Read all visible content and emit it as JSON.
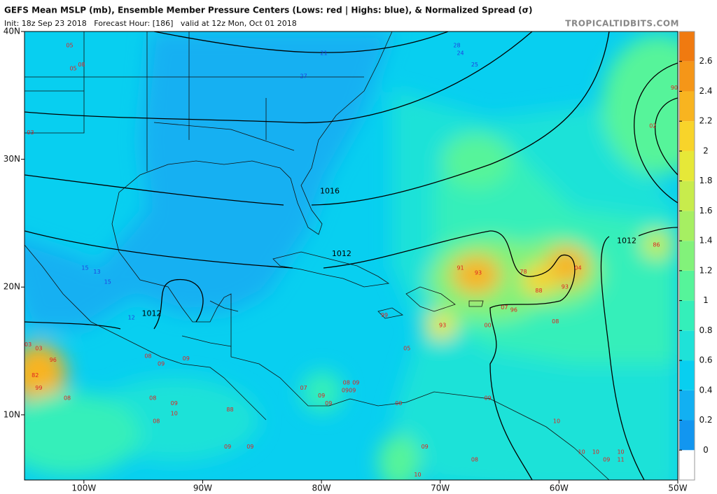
{
  "header": {
    "title": "GEFS Mean MSLP (mb), Ensemble Member Pressure Centers (Lows: red | Highs: blue), & Normalized Spread (σ)",
    "subtitle": "Init: 18z Sep 23 2018   Forecast Hour: [186]   valid at 12z Mon, Oct 01 2018",
    "site": "TROPICALTIDBITS.COM"
  },
  "map": {
    "xlim": [
      -105,
      -50
    ],
    "ylim": [
      4.9,
      40
    ],
    "xticks": [
      {
        "value": -100,
        "label": "100W"
      },
      {
        "value": -90,
        "label": "90W"
      },
      {
        "value": -80,
        "label": "80W"
      },
      {
        "value": -70,
        "label": "70W"
      },
      {
        "value": -60,
        "label": "60W"
      },
      {
        "value": -50,
        "label": "50W"
      }
    ],
    "yticks": [
      {
        "value": 10,
        "label": "10N"
      },
      {
        "value": 20,
        "label": "20N"
      },
      {
        "value": 30,
        "label": "30N"
      },
      {
        "value": 40,
        "label": "40N"
      }
    ],
    "isobar_labels": [
      {
        "label": "1016",
        "lon": -79.3,
        "lat": 27.5
      },
      {
        "label": "1012",
        "lon": -78.3,
        "lat": 22.6
      },
      {
        "label": "1012",
        "lon": -94.3,
        "lat": 17.9
      },
      {
        "label": "1012",
        "lon": -54.3,
        "lat": 23.6
      }
    ],
    "lows": [
      {
        "label": "05",
        "lon": -101.2,
        "lat": 38.9
      },
      {
        "label": "05",
        "lon": -100.9,
        "lat": 37.1
      },
      {
        "label": "08",
        "lon": -100.2,
        "lat": 37.4
      },
      {
        "label": "03",
        "lon": -104.5,
        "lat": 32.1
      },
      {
        "label": "91",
        "lon": -68.3,
        "lat": 21.5
      },
      {
        "label": "93",
        "lon": -66.8,
        "lat": 21.1
      },
      {
        "label": "78",
        "lon": -63.0,
        "lat": 21.2
      },
      {
        "label": "04",
        "lon": -58.4,
        "lat": 21.5
      },
      {
        "label": "88",
        "lon": -61.7,
        "lat": 19.7
      },
      {
        "label": "93",
        "lon": -59.5,
        "lat": 20.0
      },
      {
        "label": "86",
        "lon": -51.8,
        "lat": 23.3
      },
      {
        "label": "93",
        "lon": -69.8,
        "lat": 17.0
      },
      {
        "label": "00",
        "lon": -66.0,
        "lat": 17.0
      },
      {
        "label": "96",
        "lon": -63.8,
        "lat": 18.2
      },
      {
        "label": "07",
        "lon": -64.6,
        "lat": 18.4
      },
      {
        "label": "99",
        "lon": -74.7,
        "lat": 17.8
      },
      {
        "label": "05",
        "lon": -72.8,
        "lat": 15.2
      },
      {
        "label": "08",
        "lon": -60.3,
        "lat": 17.3
      },
      {
        "label": "96",
        "lon": -102.6,
        "lat": 14.3
      },
      {
        "label": "82",
        "lon": -104.1,
        "lat": 13.1
      },
      {
        "label": "99",
        "lon": -103.8,
        "lat": 12.1
      },
      {
        "label": "03",
        "lon": -104.7,
        "lat": 15.5
      },
      {
        "label": "03",
        "lon": -103.8,
        "lat": 15.2
      },
      {
        "label": "08",
        "lon": -101.4,
        "lat": 11.3
      },
      {
        "label": "08",
        "lon": -94.6,
        "lat": 14.6
      },
      {
        "label": "09",
        "lon": -93.5,
        "lat": 14.0
      },
      {
        "label": "09",
        "lon": -91.4,
        "lat": 14.4
      },
      {
        "label": "08",
        "lon": -94.2,
        "lat": 11.3
      },
      {
        "label": "09",
        "lon": -92.4,
        "lat": 10.9
      },
      {
        "label": "07",
        "lon": -81.5,
        "lat": 12.1
      },
      {
        "label": "09",
        "lon": -80.0,
        "lat": 11.5
      },
      {
        "label": "08",
        "lon": -77.9,
        "lat": 12.5
      },
      {
        "label": "09",
        "lon": -77.1,
        "lat": 12.5
      },
      {
        "label": "0909",
        "lon": -77.7,
        "lat": 11.9
      },
      {
        "label": "09",
        "lon": -79.4,
        "lat": 10.9
      },
      {
        "label": "88",
        "lon": -87.7,
        "lat": 10.4
      },
      {
        "label": "08",
        "lon": -93.9,
        "lat": 9.5
      },
      {
        "label": "10",
        "lon": -92.4,
        "lat": 10.1
      },
      {
        "label": "09",
        "lon": -87.9,
        "lat": 7.5
      },
      {
        "label": "09",
        "lon": -86.0,
        "lat": 7.5
      },
      {
        "label": "09",
        "lon": -66.0,
        "lat": 11.3
      },
      {
        "label": "10",
        "lon": -60.2,
        "lat": 9.5
      },
      {
        "label": "10",
        "lon": -58.1,
        "lat": 7.1
      },
      {
        "label": "10",
        "lon": -56.9,
        "lat": 7.1
      },
      {
        "label": "10",
        "lon": -54.8,
        "lat": 7.1
      },
      {
        "label": "09",
        "lon": -56.0,
        "lat": 6.5
      },
      {
        "label": "11",
        "lon": -54.8,
        "lat": 6.5
      },
      {
        "label": "10",
        "lon": -71.9,
        "lat": 5.3
      },
      {
        "label": "08",
        "lon": -67.1,
        "lat": 6.5
      },
      {
        "label": "09",
        "lon": -71.3,
        "lat": 7.5
      },
      {
        "label": "00",
        "lon": -73.5,
        "lat": 10.9
      },
      {
        "label": "02",
        "lon": -52.1,
        "lat": 32.6
      },
      {
        "label": "90",
        "lon": -50.3,
        "lat": 35.6
      }
    ],
    "highs": [
      {
        "label": "21",
        "lon": -79.8,
        "lat": 38.3
      },
      {
        "label": "28",
        "lon": -68.6,
        "lat": 38.9
      },
      {
        "label": "24",
        "lon": -68.3,
        "lat": 38.3
      },
      {
        "label": "25",
        "lon": -67.1,
        "lat": 37.4
      },
      {
        "label": "27",
        "lon": -81.5,
        "lat": 36.5
      },
      {
        "label": "15",
        "lon": -99.9,
        "lat": 21.5
      },
      {
        "label": "13",
        "lon": -98.9,
        "lat": 21.2
      },
      {
        "label": "15",
        "lon": -98.0,
        "lat": 20.4
      },
      {
        "label": "12",
        "lon": -96.0,
        "lat": 17.6
      }
    ]
  },
  "colorbar": {
    "lim": [
      -0.2,
      2.8
    ],
    "ticks": [
      0,
      0.2,
      0.4,
      0.6,
      0.8,
      1,
      1.2,
      1.4,
      1.6,
      1.8,
      2,
      2.2,
      2.4,
      2.6
    ],
    "colors": [
      "#ffffff",
      "#1296f0",
      "#12b0f2",
      "#08cff0",
      "#1fe2d8",
      "#34efba",
      "#56f49a",
      "#82f27a",
      "#a6ef62",
      "#c8ec4c",
      "#e6e838",
      "#f8d42a",
      "#f8b420",
      "#f59618",
      "#f07a10"
    ]
  }
}
